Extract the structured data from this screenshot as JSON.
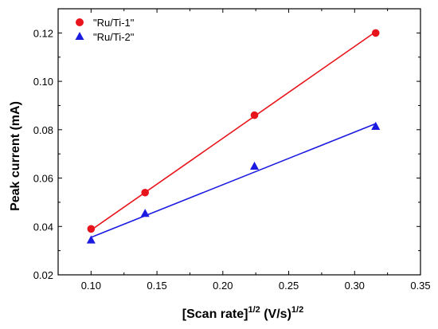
{
  "chart_data": {
    "type": "scatter",
    "xlabel": {
      "main": "[Scan rate]",
      "sup1": "1/2",
      "mid": " (V/s)",
      "sup2": "1/2"
    },
    "ylabel": "Peak current (mA)",
    "xlim": [
      0.075,
      0.35
    ],
    "ylim": [
      0.02,
      0.13
    ],
    "xticks": [
      0.1,
      0.15,
      0.2,
      0.25,
      0.3,
      0.35
    ],
    "xtick_labels": [
      "0.10",
      "0.15",
      "0.20",
      "0.25",
      "0.30",
      "0.35"
    ],
    "yticks": [
      0.02,
      0.04,
      0.06,
      0.08,
      0.1,
      0.12
    ],
    "ytick_labels": [
      "0.02",
      "0.04",
      "0.06",
      "0.08",
      "0.10",
      "0.12"
    ],
    "grid": false,
    "legend_position": "top-left",
    "series": [
      {
        "name": "\"Ru/Ti-1\"",
        "marker": "circle",
        "color": "#e8141b",
        "x": [
          0.1,
          0.141,
          0.224,
          0.316
        ],
        "y": [
          0.039,
          0.054,
          0.086,
          0.12
        ],
        "fit": [
          [
            0.1,
            0.0385
          ],
          [
            0.316,
            0.1205
          ]
        ]
      },
      {
        "name": "\"Ru/Ti-2\"",
        "marker": "triangle",
        "color": "#1a1ae0",
        "x": [
          0.1,
          0.141,
          0.224,
          0.316
        ],
        "y": [
          0.0345,
          0.0455,
          0.065,
          0.0815
        ],
        "fit": [
          [
            0.1,
            0.0355
          ],
          [
            0.316,
            0.0825
          ]
        ]
      }
    ]
  }
}
